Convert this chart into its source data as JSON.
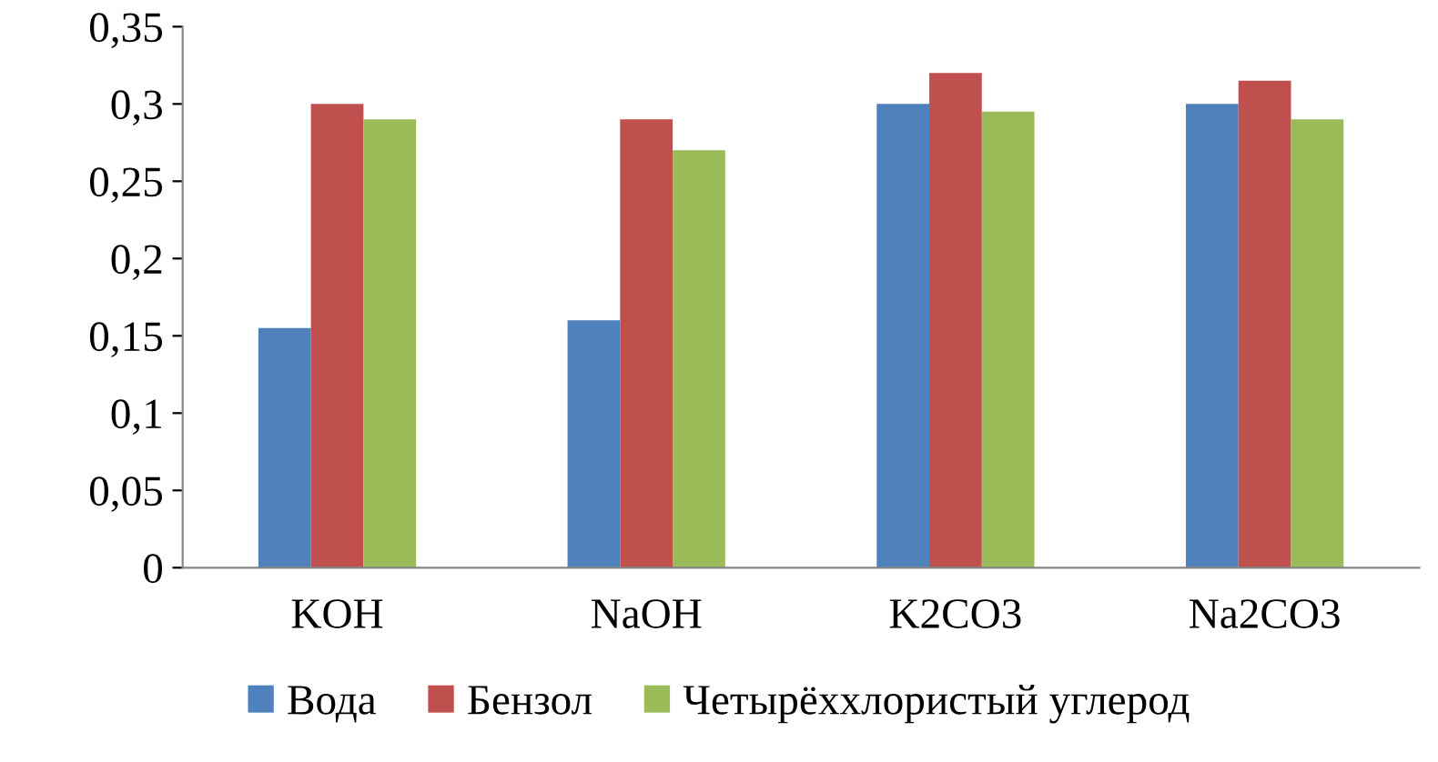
{
  "chart_data": {
    "type": "bar",
    "categories": [
      "KOH",
      "NaOH",
      "K2CO3",
      "Na2CO3"
    ],
    "series": [
      {
        "name": "Вода",
        "color": "#4f81bd",
        "values": [
          0.155,
          0.16,
          0.3,
          0.3
        ]
      },
      {
        "name": "Бензол",
        "color": "#c0504d",
        "values": [
          0.3,
          0.29,
          0.32,
          0.315
        ]
      },
      {
        "name": "Четырёххлористый углерод",
        "color": "#9bbb59",
        "values": [
          0.29,
          0.27,
          0.295,
          0.29
        ]
      }
    ],
    "ylim": [
      0,
      0.35
    ],
    "yticks": [
      {
        "value": 0,
        "label": "0"
      },
      {
        "value": 0.05,
        "label": "0,05"
      },
      {
        "value": 0.1,
        "label": "0,1"
      },
      {
        "value": 0.15,
        "label": "0,15"
      },
      {
        "value": 0.2,
        "label": "0,2"
      },
      {
        "value": 0.25,
        "label": "0,25"
      },
      {
        "value": 0.3,
        "label": "0,3"
      },
      {
        "value": 0.35,
        "label": "0,35"
      }
    ],
    "grid": false,
    "legend": "bottom"
  }
}
